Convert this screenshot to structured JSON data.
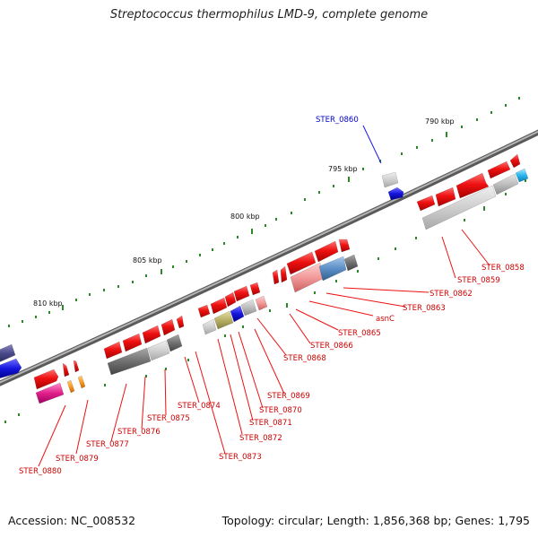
{
  "title": "Streptococcus thermophilus LMD-9, complete genome",
  "footer": {
    "accession": "Accession: NC_008532",
    "summary": "Topology: circular; Length: 1,856,368 bp; Genes: 1,795"
  },
  "scale_labels": [
    "790 kbp",
    "795 kbp",
    "800 kbp",
    "805 kbp",
    "810 kbp"
  ],
  "gene_labels": [
    "STER_0860",
    "STER_0858",
    "STER_0859",
    "STER_0862",
    "STER_0863",
    "asnC",
    "STER_0865",
    "STER_0866",
    "STER_0868",
    "STER_0869",
    "STER_0870",
    "STER_0871",
    "STER_0872",
    "STER_0873",
    "STER_0874",
    "STER_0875",
    "STER_0876",
    "STER_0877",
    "STER_0879",
    "STER_0880"
  ],
  "colors": {
    "gene_forward": "#ee1111",
    "label_red": "#cc0000",
    "label_blue": "#0000cc",
    "backbone": "#777777",
    "tick": "#1f7a1f"
  }
}
